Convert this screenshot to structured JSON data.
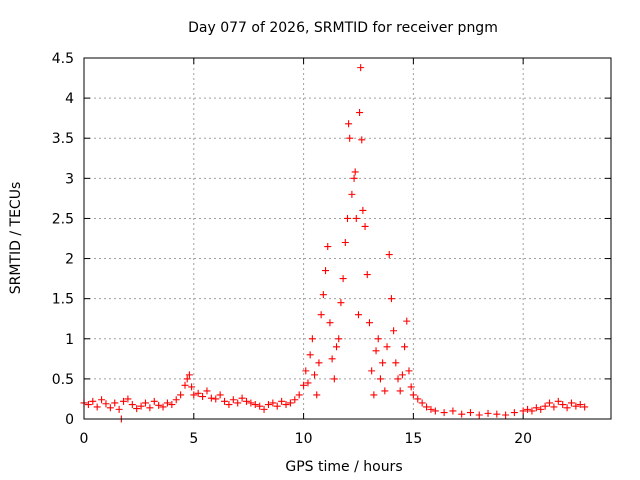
{
  "chart_data": {
    "type": "scatter",
    "title": "Day 077 of 2026, SRMTID for receiver pngm",
    "xlabel": "GPS time / hours",
    "ylabel": "SRMTID / TECUs",
    "xlim": [
      0,
      24
    ],
    "ylim": [
      0,
      4.5
    ],
    "xticks": [
      0,
      5,
      10,
      15,
      20
    ],
    "xtick_labels": [
      "0",
      "5",
      "10",
      "15",
      "20"
    ],
    "yticks": [
      0,
      0.5,
      1,
      1.5,
      2,
      2.5,
      3,
      3.5,
      4,
      4.5
    ],
    "ytick_labels": [
      "0",
      "0.5",
      "1",
      "1.5",
      "2",
      "2.5",
      "3",
      "3.5",
      "4",
      "4.5"
    ],
    "grid": true,
    "marker": "+",
    "color": "#ff0000",
    "series": [
      {
        "name": "SRMTID",
        "points": [
          [
            0.0,
            0.2
          ],
          [
            0.2,
            0.18
          ],
          [
            0.4,
            0.22
          ],
          [
            0.6,
            0.15
          ],
          [
            0.8,
            0.24
          ],
          [
            1.0,
            0.19
          ],
          [
            1.2,
            0.14
          ],
          [
            1.4,
            0.2
          ],
          [
            1.6,
            0.12
          ],
          [
            1.7,
            0.0
          ],
          [
            1.8,
            0.22
          ],
          [
            2.0,
            0.25
          ],
          [
            2.2,
            0.18
          ],
          [
            2.4,
            0.13
          ],
          [
            2.6,
            0.16
          ],
          [
            2.8,
            0.2
          ],
          [
            3.0,
            0.14
          ],
          [
            3.2,
            0.22
          ],
          [
            3.4,
            0.17
          ],
          [
            3.6,
            0.15
          ],
          [
            3.8,
            0.2
          ],
          [
            4.0,
            0.18
          ],
          [
            4.2,
            0.24
          ],
          [
            4.4,
            0.3
          ],
          [
            4.6,
            0.42
          ],
          [
            4.7,
            0.5
          ],
          [
            4.8,
            0.55
          ],
          [
            4.9,
            0.4
          ],
          [
            5.0,
            0.3
          ],
          [
            5.2,
            0.32
          ],
          [
            5.4,
            0.28
          ],
          [
            5.6,
            0.35
          ],
          [
            5.8,
            0.26
          ],
          [
            6.0,
            0.25
          ],
          [
            6.2,
            0.3
          ],
          [
            6.4,
            0.22
          ],
          [
            6.6,
            0.18
          ],
          [
            6.8,
            0.24
          ],
          [
            7.0,
            0.2
          ],
          [
            7.2,
            0.26
          ],
          [
            7.4,
            0.22
          ],
          [
            7.6,
            0.2
          ],
          [
            7.8,
            0.18
          ],
          [
            8.0,
            0.16
          ],
          [
            8.2,
            0.12
          ],
          [
            8.4,
            0.18
          ],
          [
            8.6,
            0.2
          ],
          [
            8.8,
            0.16
          ],
          [
            9.0,
            0.22
          ],
          [
            9.2,
            0.18
          ],
          [
            9.4,
            0.2
          ],
          [
            9.6,
            0.24
          ],
          [
            9.8,
            0.3
          ],
          [
            10.0,
            0.42
          ],
          [
            10.1,
            0.6
          ],
          [
            10.2,
            0.45
          ],
          [
            10.3,
            0.8
          ],
          [
            10.4,
            1.0
          ],
          [
            10.5,
            0.55
          ],
          [
            10.6,
            0.3
          ],
          [
            10.7,
            0.7
          ],
          [
            10.8,
            1.3
          ],
          [
            10.9,
            1.55
          ],
          [
            11.0,
            1.85
          ],
          [
            11.1,
            2.15
          ],
          [
            11.2,
            1.2
          ],
          [
            11.3,
            0.75
          ],
          [
            11.4,
            0.5
          ],
          [
            11.5,
            0.9
          ],
          [
            11.6,
            1.0
          ],
          [
            11.7,
            1.45
          ],
          [
            11.8,
            1.75
          ],
          [
            11.9,
            2.2
          ],
          [
            12.0,
            2.5
          ],
          [
            12.05,
            3.68
          ],
          [
            12.1,
            3.5
          ],
          [
            12.2,
            2.8
          ],
          [
            12.3,
            3.0
          ],
          [
            12.35,
            3.08
          ],
          [
            12.4,
            2.5
          ],
          [
            12.5,
            1.3
          ],
          [
            12.55,
            3.82
          ],
          [
            12.6,
            4.38
          ],
          [
            12.65,
            3.48
          ],
          [
            12.7,
            2.6
          ],
          [
            12.8,
            2.4
          ],
          [
            12.9,
            1.8
          ],
          [
            13.0,
            1.2
          ],
          [
            13.1,
            0.6
          ],
          [
            13.2,
            0.3
          ],
          [
            13.3,
            0.85
          ],
          [
            13.4,
            1.0
          ],
          [
            13.5,
            0.5
          ],
          [
            13.6,
            0.7
          ],
          [
            13.7,
            0.35
          ],
          [
            13.8,
            0.9
          ],
          [
            13.9,
            2.05
          ],
          [
            14.0,
            1.5
          ],
          [
            14.1,
            1.1
          ],
          [
            14.2,
            0.7
          ],
          [
            14.3,
            0.5
          ],
          [
            14.4,
            0.35
          ],
          [
            14.5,
            0.55
          ],
          [
            14.6,
            0.9
          ],
          [
            14.7,
            1.22
          ],
          [
            14.8,
            0.6
          ],
          [
            14.9,
            0.4
          ],
          [
            15.0,
            0.3
          ],
          [
            15.2,
            0.25
          ],
          [
            15.4,
            0.2
          ],
          [
            15.6,
            0.15
          ],
          [
            15.8,
            0.12
          ],
          [
            16.0,
            0.1
          ],
          [
            16.4,
            0.08
          ],
          [
            16.8,
            0.1
          ],
          [
            17.2,
            0.06
          ],
          [
            17.6,
            0.08
          ],
          [
            18.0,
            0.05
          ],
          [
            18.4,
            0.07
          ],
          [
            18.8,
            0.06
          ],
          [
            19.2,
            0.05
          ],
          [
            19.6,
            0.08
          ],
          [
            20.0,
            0.1
          ],
          [
            20.2,
            0.12
          ],
          [
            20.4,
            0.1
          ],
          [
            20.6,
            0.14
          ],
          [
            20.8,
            0.12
          ],
          [
            21.0,
            0.16
          ],
          [
            21.2,
            0.2
          ],
          [
            21.4,
            0.15
          ],
          [
            21.6,
            0.22
          ],
          [
            21.8,
            0.18
          ],
          [
            22.0,
            0.14
          ],
          [
            22.2,
            0.2
          ],
          [
            22.4,
            0.16
          ],
          [
            22.6,
            0.18
          ],
          [
            22.8,
            0.15
          ]
        ]
      }
    ]
  }
}
